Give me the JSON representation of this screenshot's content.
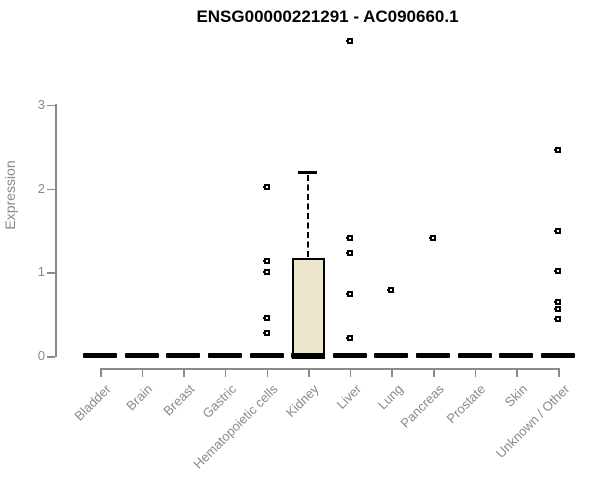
{
  "title": "ENSG00000221291 - AC090660.1",
  "chart_data": {
    "type": "boxplot",
    "title": "ENSG00000221291 - AC090660.1",
    "xlabel": "",
    "ylabel": "Expression",
    "ylim": [
      0,
      3
    ],
    "yticks": [
      0,
      1,
      2,
      3
    ],
    "grid": false,
    "legend": null,
    "categories": [
      "Bladder",
      "Brain",
      "Breast",
      "Gastric",
      "Hematopoietic cells",
      "Kidney",
      "Liver",
      "Lung",
      "Pancreas",
      "Prostate",
      "Skin",
      "Unknown / Other"
    ],
    "boxes": [
      {
        "category": "Bladder",
        "whisker_low": 0,
        "q1": 0,
        "median": 0,
        "q3": 0,
        "whisker_high": 0,
        "outliers": []
      },
      {
        "category": "Brain",
        "whisker_low": 0,
        "q1": 0,
        "median": 0,
        "q3": 0,
        "whisker_high": 0,
        "outliers": []
      },
      {
        "category": "Breast",
        "whisker_low": 0,
        "q1": 0,
        "median": 0,
        "q3": 0,
        "whisker_high": 0,
        "outliers": []
      },
      {
        "category": "Gastric",
        "whisker_low": 0,
        "q1": 0,
        "median": 0,
        "q3": 0,
        "whisker_high": 0,
        "outliers": []
      },
      {
        "category": "Hematopoietic cells",
        "whisker_low": 0,
        "q1": 0,
        "median": 0,
        "q3": 0,
        "whisker_high": 0,
        "outliers": [
          2.02,
          1.13,
          1.0,
          0.46,
          0.28
        ]
      },
      {
        "category": "Kidney",
        "whisker_low": 0,
        "q1": 0,
        "median": 0,
        "q3": 1.17,
        "whisker_high": 2.2,
        "outliers": []
      },
      {
        "category": "Liver",
        "whisker_low": 0,
        "q1": 0,
        "median": 0,
        "q3": 0,
        "whisker_high": 0,
        "outliers": [
          3.77,
          1.41,
          1.23,
          0.74,
          0.22
        ]
      },
      {
        "category": "Lung",
        "whisker_low": 0,
        "q1": 0,
        "median": 0,
        "q3": 0,
        "whisker_high": 0,
        "outliers": [
          0.79
        ]
      },
      {
        "category": "Pancreas",
        "whisker_low": 0,
        "q1": 0,
        "median": 0,
        "q3": 0,
        "whisker_high": 0,
        "outliers": [
          1.41
        ]
      },
      {
        "category": "Prostate",
        "whisker_low": 0,
        "q1": 0,
        "median": 0,
        "q3": 0,
        "whisker_high": 0,
        "outliers": []
      },
      {
        "category": "Skin",
        "whisker_low": 0,
        "q1": 0,
        "median": 0,
        "q3": 0,
        "whisker_high": 0,
        "outliers": []
      },
      {
        "category": "Unknown / Other",
        "whisker_low": 0,
        "q1": 0,
        "median": 0,
        "q3": 0,
        "whisker_high": 0,
        "outliers": [
          2.46,
          1.49,
          1.01,
          0.64,
          0.56,
          0.44
        ]
      }
    ],
    "colors": {
      "box_fill": "#ECE7CC",
      "box_stroke": "#000000",
      "point_stroke": "#000000",
      "point_fill": "#ffffff",
      "axis": "#8a8a8a",
      "title_text": "#000000"
    }
  }
}
